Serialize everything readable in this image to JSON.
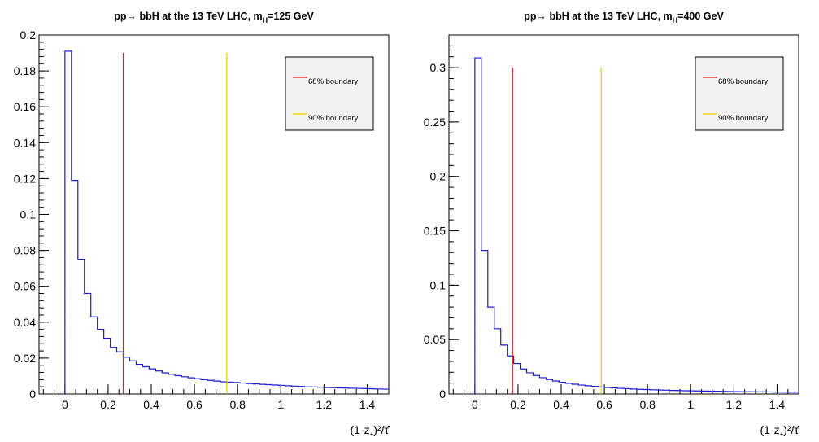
{
  "chart_data": [
    {
      "type": "histogram",
      "title_main": "pp→ bbH at the 13 TeV LHC, m",
      "title_sub": "H",
      "title_tail": "=125 GeV",
      "xlabel_main": "(1-z",
      "xlabel_sub": "+",
      "xlabel_tail": ")²/τ̂",
      "xlim": [
        -0.12,
        1.5
      ],
      "ylim": [
        0,
        0.2
      ],
      "xticks": [
        0,
        0.2,
        0.4,
        0.6,
        0.8,
        1,
        1.2,
        1.4
      ],
      "xtick_labels": [
        "0",
        "0.2",
        "0.4",
        "0.6",
        "0.8",
        "1",
        "1.2",
        "1.4"
      ],
      "yticks": [
        0,
        0.02,
        0.04,
        0.06,
        0.08,
        0.1,
        0.12,
        0.14,
        0.16,
        0.18,
        0.2
      ],
      "ytick_labels": [
        "0",
        "0.02",
        "0.04",
        "0.06",
        "0.08",
        "0.1",
        "0.12",
        "0.14",
        "0.16",
        "0.18",
        "0.2"
      ],
      "bin_width": 0.03,
      "bin_start": 0,
      "bin_values": [
        0.191,
        0.119,
        0.075,
        0.056,
        0.043,
        0.036,
        0.031,
        0.026,
        0.0235,
        0.0205,
        0.0185,
        0.0165,
        0.0152,
        0.014,
        0.0128,
        0.0118,
        0.011,
        0.0102,
        0.0096,
        0.009,
        0.0085,
        0.008,
        0.0076,
        0.0072,
        0.0068,
        0.0066,
        0.0064,
        0.0061,
        0.0058,
        0.0056,
        0.0054,
        0.0052,
        0.005,
        0.0048,
        0.0046,
        0.0044,
        0.0042,
        0.004,
        0.0039,
        0.0038,
        0.0036,
        0.0035,
        0.0034,
        0.0033,
        0.0032,
        0.0031,
        0.003,
        0.0029,
        0.0028,
        0.0027
      ],
      "series_color": "#1a1ad8",
      "boundaries": [
        {
          "name": "68% boundary",
          "x": 0.27,
          "top": 0.19,
          "color": "#e02020"
        },
        {
          "name": "90% boundary",
          "x": 0.75,
          "top": 0.19,
          "color": "#f0c800"
        }
      ],
      "legend_position": "top-right"
    },
    {
      "type": "histogram",
      "title_main": "pp→ bbH at the 13 TeV LHC, m",
      "title_sub": "H",
      "title_tail": "=400 GeV",
      "xlabel_main": "(1-z",
      "xlabel_sub": "+",
      "xlabel_tail": ")²/τ̂",
      "xlim": [
        -0.12,
        1.5
      ],
      "ylim": [
        0,
        0.33
      ],
      "xticks": [
        0,
        0.2,
        0.4,
        0.6,
        0.8,
        1,
        1.2,
        1.4
      ],
      "xtick_labels": [
        "0",
        "0.2",
        "0.4",
        "0.6",
        "0.8",
        "1",
        "1.2",
        "1.4"
      ],
      "yticks": [
        0,
        0.05,
        0.1,
        0.15,
        0.2,
        0.25,
        0.3
      ],
      "ytick_labels": [
        "0",
        "0.05",
        "0.1",
        "0.15",
        "0.2",
        "0.25",
        "0.3"
      ],
      "bin_width": 0.03,
      "bin_start": 0,
      "bin_values": [
        0.309,
        0.132,
        0.08,
        0.06,
        0.045,
        0.035,
        0.028,
        0.023,
        0.0195,
        0.017,
        0.015,
        0.0133,
        0.012,
        0.0108,
        0.0098,
        0.009,
        0.0082,
        0.0076,
        0.007,
        0.0065,
        0.006,
        0.0056,
        0.0052,
        0.0049,
        0.0046,
        0.0043,
        0.0041,
        0.0039,
        0.0037,
        0.0035,
        0.0033,
        0.0032,
        0.003,
        0.0029,
        0.0028,
        0.0027,
        0.0026,
        0.0025,
        0.0024,
        0.0023,
        0.0022,
        0.0021,
        0.0021,
        0.002,
        0.002,
        0.0019,
        0.0018,
        0.0018,
        0.0017,
        0.0017
      ],
      "series_color": "#1a1ad8",
      "boundaries": [
        {
          "name": "68% boundary",
          "x": 0.175,
          "top": 0.3,
          "color": "#e02020"
        },
        {
          "name": "90% boundary",
          "x": 0.585,
          "top": 0.3,
          "color": "#f0c800"
        }
      ],
      "legend_position": "top-right"
    }
  ]
}
